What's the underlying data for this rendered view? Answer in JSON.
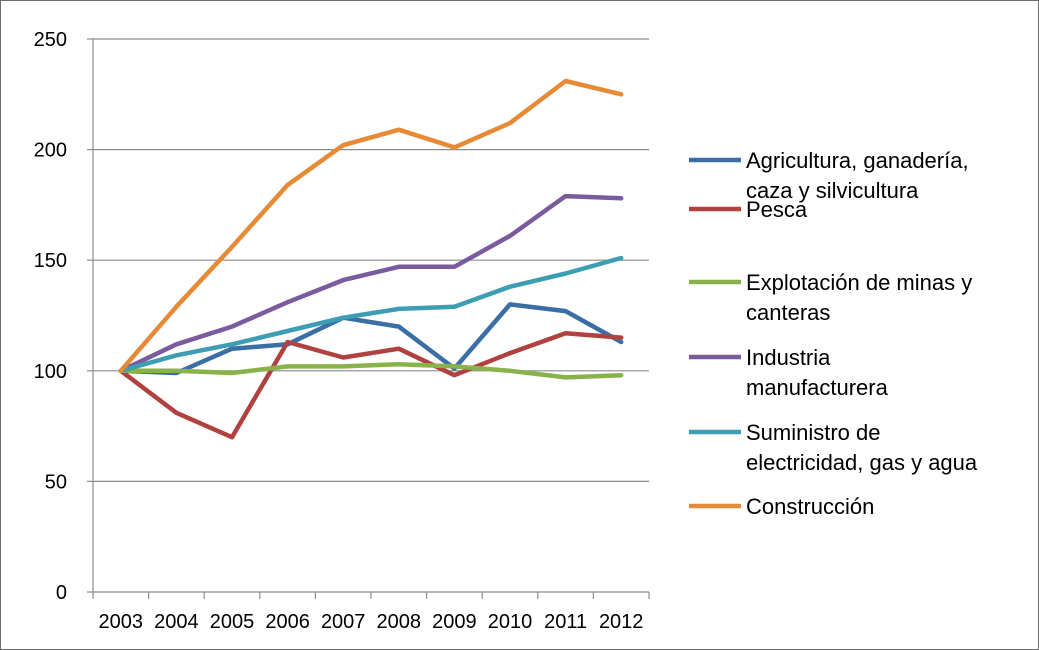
{
  "chart_data": {
    "type": "line",
    "title": "",
    "xlabel": "",
    "ylabel": "",
    "categories": [
      "2003",
      "2004",
      "2005",
      "2006",
      "2007",
      "2008",
      "2009",
      "2010",
      "2011",
      "2012"
    ],
    "ylim": [
      0,
      250
    ],
    "yticks": [
      "0",
      "50",
      "100",
      "150",
      "200",
      "250"
    ],
    "grid": "horizontal",
    "legend_position": "right",
    "series": [
      {
        "name_lines": [
          "Agricultura, ganadería,",
          "caza y silvicultura"
        ],
        "color": "#3a6ea5",
        "values": [
          100,
          99,
          110,
          112,
          124,
          120,
          101,
          130,
          127,
          113
        ]
      },
      {
        "name_lines": [
          "Pesca"
        ],
        "color": "#b0413e",
        "values": [
          100,
          81,
          70,
          113,
          106,
          110,
          98,
          108,
          117,
          115
        ]
      },
      {
        "name_lines": [
          "Explotación de minas y",
          "canteras"
        ],
        "color": "#89b24a",
        "values": [
          100,
          100,
          99,
          102,
          102,
          103,
          102,
          100,
          97,
          98
        ]
      },
      {
        "name_lines": [
          "Industria",
          "manufacturera"
        ],
        "color": "#7a5b9e",
        "values": [
          100,
          112,
          120,
          131,
          141,
          147,
          147,
          161,
          179,
          178
        ]
      },
      {
        "name_lines": [
          "Suministro de",
          "electricidad, gas y agua"
        ],
        "color": "#3d9db3",
        "values": [
          100,
          107,
          112,
          118,
          124,
          128,
          129,
          138,
          144,
          151
        ]
      },
      {
        "name_lines": [
          "Construcción"
        ],
        "color": "#e68a36",
        "values": [
          100,
          129,
          156,
          184,
          202,
          209,
          201,
          212,
          231,
          225
        ]
      }
    ]
  }
}
